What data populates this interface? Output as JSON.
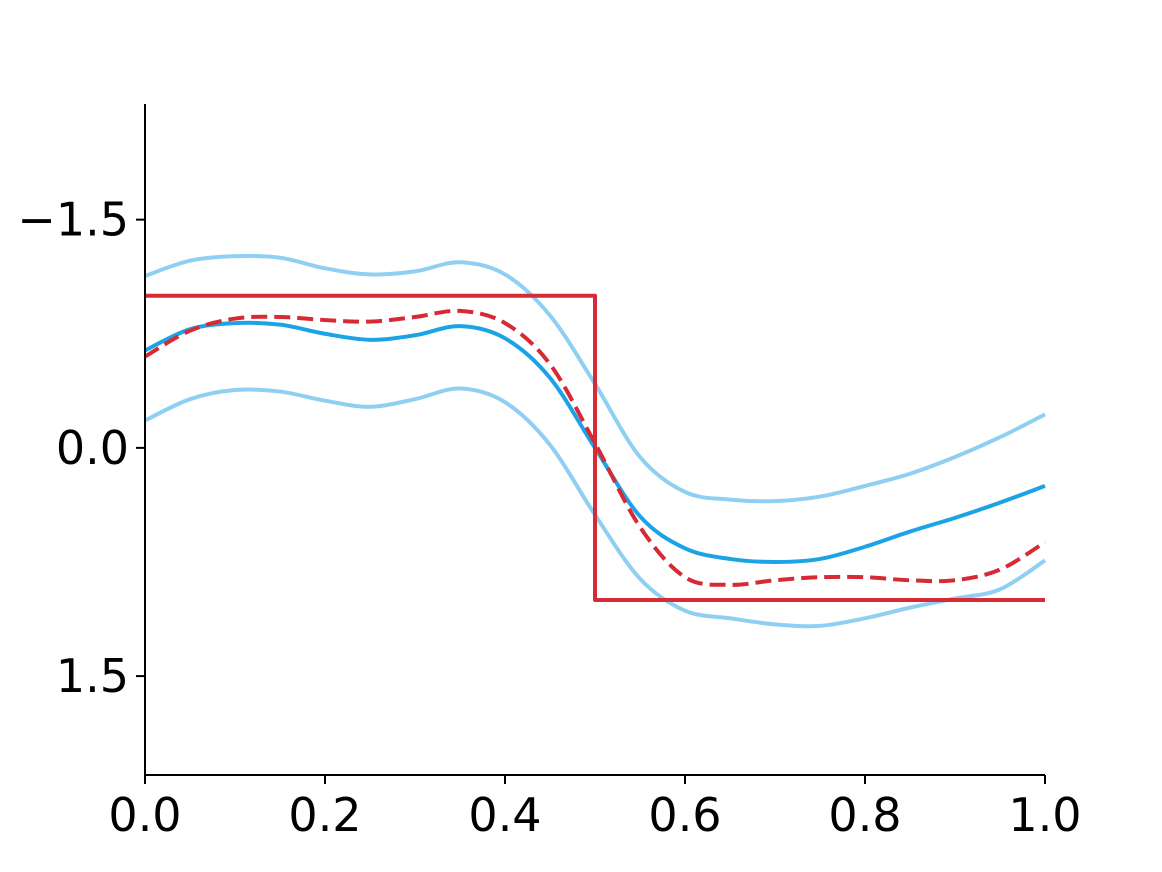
{
  "chart_data": {
    "type": "line",
    "title": "",
    "xlabel": "",
    "ylabel": "",
    "xlim": [
      0.0,
      1.0
    ],
    "ylim": [
      2.15,
      -2.26
    ],
    "y_inverted": true,
    "grid": false,
    "legend": "none",
    "x_ticks": [
      {
        "value": 0.0,
        "label": "0.0"
      },
      {
        "value": 0.2,
        "label": "0.2"
      },
      {
        "value": 0.4,
        "label": "0.4"
      },
      {
        "value": 0.6,
        "label": "0.6"
      },
      {
        "value": 0.8,
        "label": "0.8"
      },
      {
        "value": 1.0,
        "label": "1.0"
      }
    ],
    "y_ticks": [
      {
        "value": -1.5,
        "label": "−1.5"
      },
      {
        "value": 0.0,
        "label": "0.0"
      },
      {
        "value": 1.5,
        "label": "1.5"
      }
    ],
    "series": [
      {
        "id": "true-step",
        "color": "#d62a35",
        "style": "solid",
        "width": 4,
        "x": [
          0.0,
          0.5,
          0.5,
          1.0
        ],
        "y": [
          -1.0,
          -1.0,
          1.0,
          1.0
        ]
      },
      {
        "id": "estimate-dashed",
        "color": "#d62a35",
        "style": "dashed",
        "width": 4,
        "x": [
          0.0,
          0.05,
          0.1,
          0.15,
          0.2,
          0.25,
          0.3,
          0.35,
          0.4,
          0.45,
          0.5,
          0.55,
          0.6,
          0.65,
          0.7,
          0.75,
          0.8,
          0.85,
          0.9,
          0.95,
          1.0
        ],
        "y": [
          -0.6,
          -0.77,
          -0.85,
          -0.86,
          -0.84,
          -0.83,
          -0.86,
          -0.9,
          -0.82,
          -0.55,
          -0.03,
          0.52,
          0.85,
          0.9,
          0.87,
          0.85,
          0.85,
          0.87,
          0.87,
          0.8,
          0.62
        ]
      },
      {
        "id": "posterior-mean",
        "color": "#1ca3e6",
        "style": "solid",
        "width": 4,
        "x": [
          0.0,
          0.05,
          0.1,
          0.15,
          0.2,
          0.25,
          0.3,
          0.35,
          0.4,
          0.45,
          0.5,
          0.55,
          0.6,
          0.65,
          0.7,
          0.75,
          0.8,
          0.85,
          0.9,
          0.95,
          1.0
        ],
        "y": [
          -0.64,
          -0.78,
          -0.82,
          -0.81,
          -0.75,
          -0.71,
          -0.74,
          -0.8,
          -0.72,
          -0.46,
          0.0,
          0.45,
          0.66,
          0.73,
          0.75,
          0.73,
          0.65,
          0.55,
          0.46,
          0.36,
          0.25
        ]
      },
      {
        "id": "upper-band",
        "color": "#8fd0f2",
        "style": "solid",
        "width": 4,
        "x": [
          0.0,
          0.05,
          0.1,
          0.15,
          0.2,
          0.25,
          0.3,
          0.35,
          0.4,
          0.45,
          0.5,
          0.55,
          0.6,
          0.65,
          0.7,
          0.75,
          0.8,
          0.85,
          0.9,
          0.95,
          1.0
        ],
        "y": [
          -1.13,
          -1.23,
          -1.26,
          -1.25,
          -1.18,
          -1.14,
          -1.16,
          -1.22,
          -1.14,
          -0.87,
          -0.42,
          0.06,
          0.29,
          0.34,
          0.35,
          0.32,
          0.25,
          0.17,
          0.06,
          -0.07,
          -0.22
        ]
      },
      {
        "id": "lower-band",
        "color": "#8fd0f2",
        "style": "solid",
        "width": 4,
        "x": [
          0.0,
          0.05,
          0.1,
          0.15,
          0.2,
          0.25,
          0.3,
          0.35,
          0.4,
          0.45,
          0.5,
          0.55,
          0.6,
          0.65,
          0.7,
          0.75,
          0.8,
          0.85,
          0.9,
          0.95,
          1.0
        ],
        "y": [
          -0.18,
          -0.32,
          -0.38,
          -0.37,
          -0.31,
          -0.27,
          -0.32,
          -0.39,
          -0.3,
          -0.02,
          0.44,
          0.86,
          1.07,
          1.12,
          1.16,
          1.17,
          1.12,
          1.05,
          0.99,
          0.93,
          0.74
        ]
      }
    ]
  }
}
